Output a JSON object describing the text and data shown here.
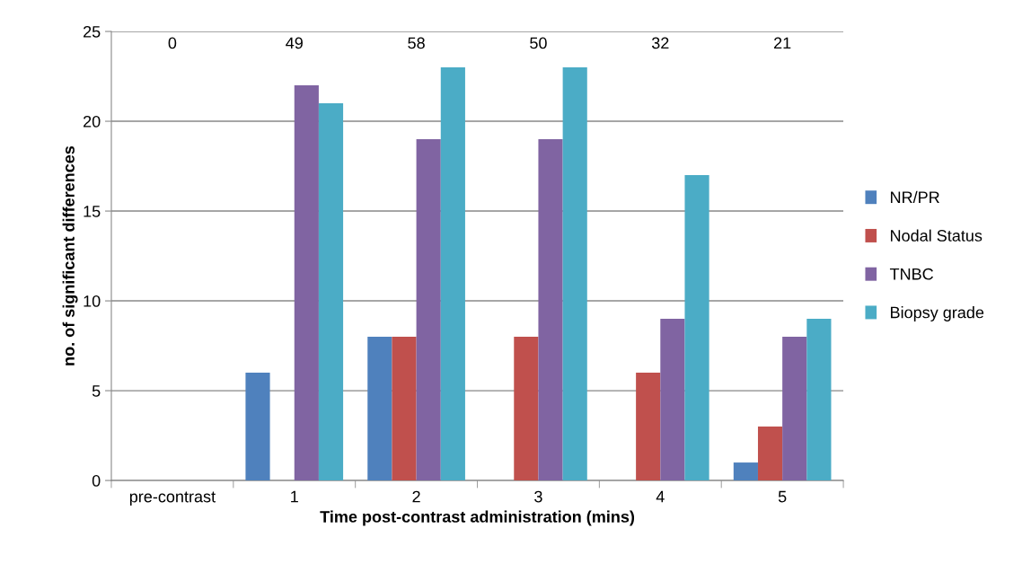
{
  "chart_data": {
    "type": "bar",
    "xlabel": "Time post-contrast administration (mins)",
    "ylabel": "no. of significant differences",
    "categories": [
      "pre-contrast",
      "1",
      "2",
      "3",
      "4",
      "5"
    ],
    "series": [
      {
        "name": "NR/PR",
        "color": "#4f81bd",
        "values": [
          0,
          6,
          8,
          0,
          0,
          1
        ]
      },
      {
        "name": "Nodal Status",
        "color": "#c0504d",
        "values": [
          0,
          0,
          8,
          8,
          6,
          3
        ]
      },
      {
        "name": "TNBC",
        "color": "#8064a2",
        "values": [
          0,
          22,
          19,
          19,
          9,
          8
        ]
      },
      {
        "name": "Biopsy grade",
        "color": "#4bacc6",
        "values": [
          0,
          21,
          23,
          23,
          17,
          9
        ]
      }
    ],
    "annotations": [
      "0",
      "49",
      "58",
      "50",
      "32",
      "21"
    ],
    "ylim": [
      0,
      25
    ],
    "yticks": [
      0,
      5,
      10,
      15,
      20,
      25
    ],
    "grid": "y",
    "legend": "right"
  }
}
